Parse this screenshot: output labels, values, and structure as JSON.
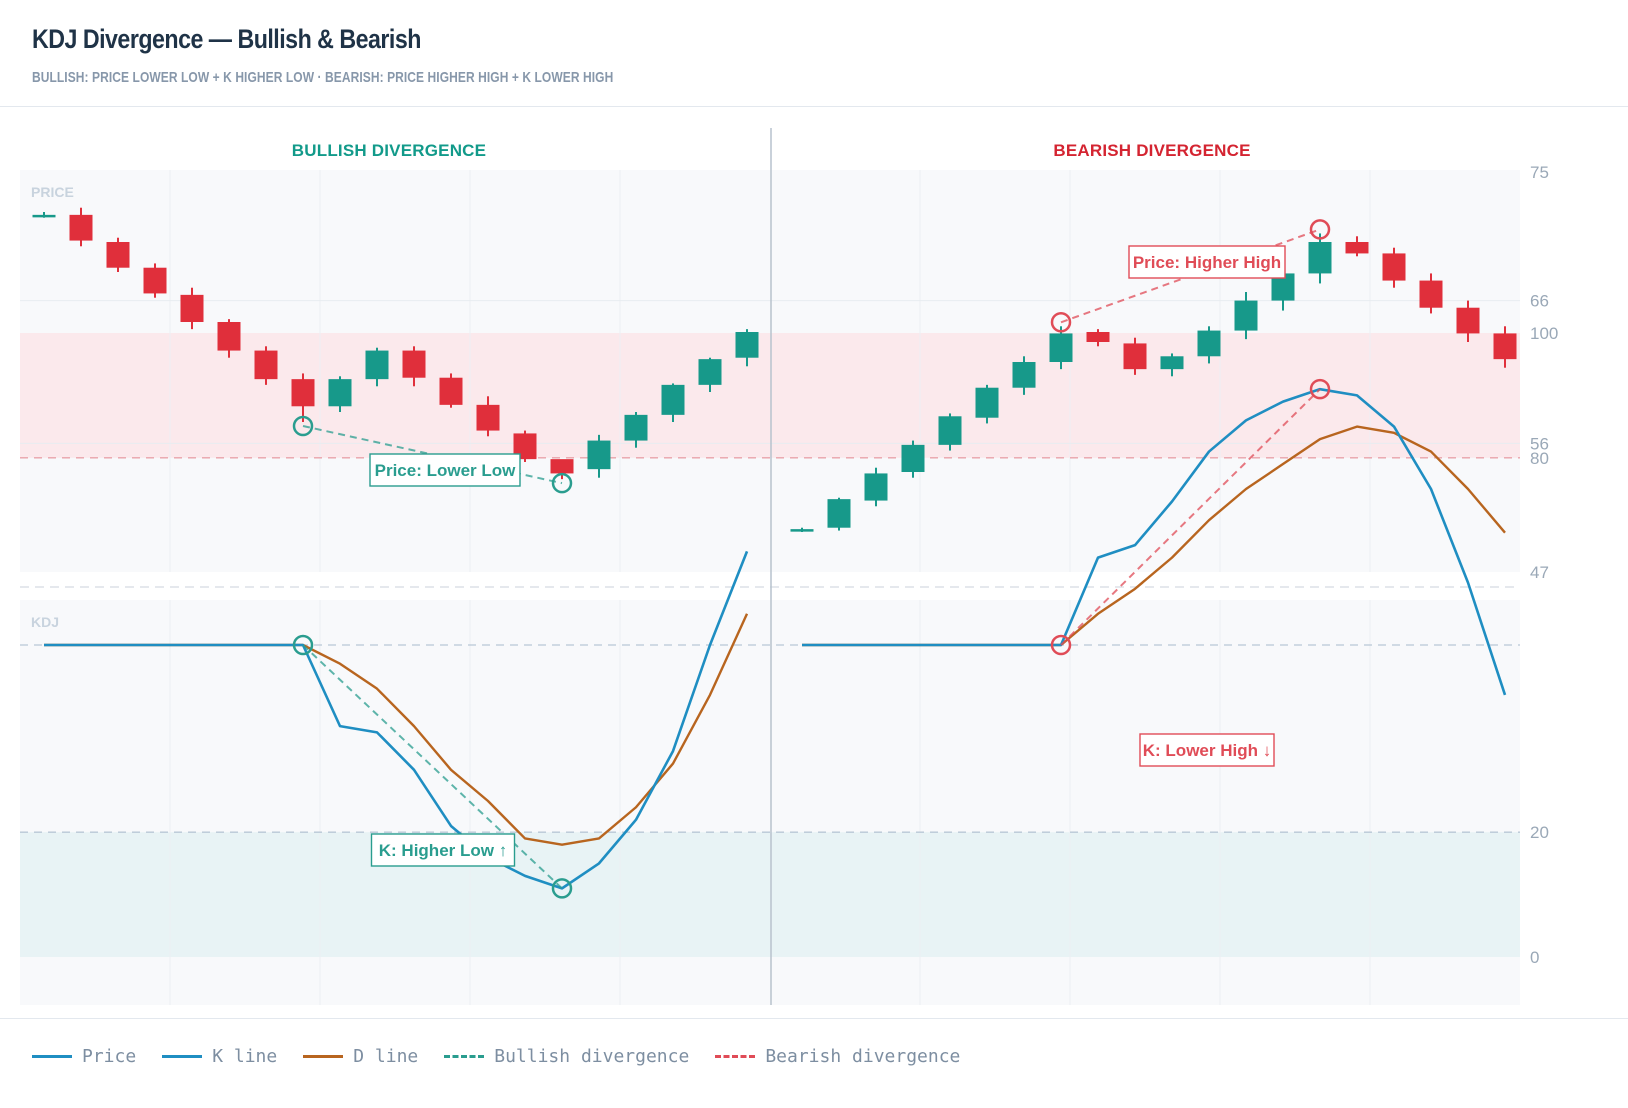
{
  "header": {
    "title": "KDJ Divergence — Bullish & Bearish",
    "subtitle": "BULLISH: PRICE LOWER LOW + K HIGHER LOW · BEARISH: PRICE HIGHER HIGH + K LOWER HIGH"
  },
  "legend": [
    {
      "label": "Price",
      "color": "#1f8ec2",
      "style": "solid"
    },
    {
      "label": "K line",
      "color": "#1f8ec2",
      "style": "solid"
    },
    {
      "label": "D line",
      "color": "#b8651f",
      "style": "solid"
    },
    {
      "label": "Bullish divergence",
      "color": "#2a9d8f",
      "style": "dashed"
    },
    {
      "label": "Bearish divergence",
      "color": "#e04c57",
      "style": "dashed"
    }
  ],
  "chart_data": {
    "type": "candlestick",
    "colors": {
      "up": "#17998a",
      "down": "#e02f3b",
      "k_line": "#1f8ec2",
      "d_line": "#b8651f",
      "bullish": "#2a9d8f",
      "bearish": "#e04c57",
      "overbought_zone": "#fbe9ec",
      "oversold_zone": "#e8f3f5"
    },
    "price_panel": {
      "label": "PRICE",
      "ylim": [
        47,
        75
      ],
      "ticks": [
        75,
        66,
        56,
        47
      ]
    },
    "kdj_panel": {
      "label": "KDJ",
      "ylim": [
        -3,
        100
      ],
      "ticks": [
        100,
        80,
        20,
        0
      ],
      "overbought": 80,
      "oversold": 20
    },
    "panels": [
      {
        "title": "BULLISH DIVERGENCE",
        "title_color": "#129a8a",
        "candles": [
          {
            "o": 72.0,
            "h": 72.2,
            "l": 71.8,
            "c": 72.0
          },
          {
            "o": 72.0,
            "h": 72.5,
            "l": 69.8,
            "c": 70.2
          },
          {
            "o": 70.1,
            "h": 70.4,
            "l": 68.0,
            "c": 68.3
          },
          {
            "o": 68.3,
            "h": 68.6,
            "l": 66.2,
            "c": 66.5
          },
          {
            "o": 66.4,
            "h": 66.9,
            "l": 64.0,
            "c": 64.5
          },
          {
            "o": 64.5,
            "h": 64.7,
            "l": 62.0,
            "c": 62.5
          },
          {
            "o": 62.5,
            "h": 62.8,
            "l": 60.1,
            "c": 60.5
          },
          {
            "o": 60.5,
            "h": 60.9,
            "l": 57.5,
            "c": 58.6
          },
          {
            "o": 58.6,
            "h": 60.7,
            "l": 58.2,
            "c": 60.5
          },
          {
            "o": 60.5,
            "h": 62.7,
            "l": 60.0,
            "c": 62.5
          },
          {
            "o": 62.5,
            "h": 62.8,
            "l": 60.0,
            "c": 60.6
          },
          {
            "o": 60.6,
            "h": 60.9,
            "l": 58.5,
            "c": 58.7
          },
          {
            "o": 58.7,
            "h": 59.3,
            "l": 56.5,
            "c": 56.9
          },
          {
            "o": 56.7,
            "h": 56.9,
            "l": 54.7,
            "c": 54.9
          },
          {
            "o": 54.9,
            "h": 54.8,
            "l": 53.5,
            "c": 53.9
          },
          {
            "o": 54.2,
            "h": 56.6,
            "l": 53.6,
            "c": 56.2
          },
          {
            "o": 56.2,
            "h": 58.2,
            "l": 55.7,
            "c": 58.0
          },
          {
            "o": 58.0,
            "h": 60.2,
            "l": 57.5,
            "c": 60.1
          },
          {
            "o": 60.1,
            "h": 62.0,
            "l": 59.6,
            "c": 61.9
          },
          {
            "o": 62.0,
            "h": 64.0,
            "l": 61.4,
            "c": 63.8
          }
        ],
        "k": [
          50,
          50,
          50,
          50,
          50,
          50,
          50,
          50,
          37,
          36,
          30,
          21,
          16,
          13,
          11,
          15,
          22,
          33,
          50,
          65
        ],
        "d": [
          50,
          50,
          50,
          50,
          50,
          50,
          50,
          50,
          47,
          43,
          37,
          30,
          25,
          19,
          18,
          19,
          24,
          31,
          42,
          55
        ],
        "divergence": {
          "kind": "bullish",
          "price_points": [
            {
              "i": 7,
              "value": 57.5
            },
            {
              "i": 14,
              "value": 53.5
            }
          ],
          "k_points": [
            {
              "i": 7,
              "value": 50
            },
            {
              "i": 14,
              "value": 11
            }
          ],
          "price_label": "Price: Lower Low",
          "k_label": "K: Higher Low ↑"
        }
      },
      {
        "title": "BEARISH DIVERGENCE",
        "title_color": "#d42431",
        "candles": [
          {
            "o": 50.0,
            "h": 50.1,
            "l": 49.8,
            "c": 50.0
          },
          {
            "o": 50.1,
            "h": 52.2,
            "l": 49.9,
            "c": 52.1
          },
          {
            "o": 52.0,
            "h": 54.3,
            "l": 51.6,
            "c": 53.9
          },
          {
            "o": 54.0,
            "h": 56.2,
            "l": 53.6,
            "c": 55.9
          },
          {
            "o": 55.9,
            "h": 58.1,
            "l": 55.5,
            "c": 57.9
          },
          {
            "o": 57.8,
            "h": 60.1,
            "l": 57.4,
            "c": 59.9
          },
          {
            "o": 59.9,
            "h": 62.1,
            "l": 59.4,
            "c": 61.7
          },
          {
            "o": 61.7,
            "h": 64.2,
            "l": 61.2,
            "c": 63.7
          },
          {
            "o": 63.8,
            "h": 64.0,
            "l": 62.8,
            "c": 63.1
          },
          {
            "o": 63.0,
            "h": 63.4,
            "l": 60.8,
            "c": 61.2
          },
          {
            "o": 61.2,
            "h": 62.3,
            "l": 60.7,
            "c": 62.1
          },
          {
            "o": 62.1,
            "h": 64.2,
            "l": 61.6,
            "c": 63.9
          },
          {
            "o": 63.9,
            "h": 66.6,
            "l": 63.3,
            "c": 66.0
          },
          {
            "o": 66.0,
            "h": 68.3,
            "l": 65.3,
            "c": 67.9
          },
          {
            "o": 67.9,
            "h": 70.7,
            "l": 67.2,
            "c": 70.1
          },
          {
            "o": 70.1,
            "h": 70.5,
            "l": 69.1,
            "c": 69.3
          },
          {
            "o": 69.3,
            "h": 69.7,
            "l": 66.9,
            "c": 67.4
          },
          {
            "o": 67.4,
            "h": 67.9,
            "l": 65.1,
            "c": 65.5
          },
          {
            "o": 65.5,
            "h": 66.0,
            "l": 63.1,
            "c": 63.7
          },
          {
            "o": 63.7,
            "h": 64.2,
            "l": 61.3,
            "c": 61.9
          }
        ],
        "k": [
          50,
          50,
          50,
          50,
          50,
          50,
          50,
          50,
          64,
          66,
          73,
          81,
          86,
          89,
          91,
          90,
          85,
          75,
          60,
          42
        ],
        "d": [
          50,
          50,
          50,
          50,
          50,
          50,
          50,
          50,
          55,
          59,
          64,
          70,
          75,
          79,
          83,
          85,
          84,
          81,
          75,
          68
        ],
        "divergence": {
          "kind": "bearish",
          "price_points": [
            {
              "i": 7,
              "value": 64.2
            },
            {
              "i": 14,
              "value": 70.7
            }
          ],
          "k_points": [
            {
              "i": 7,
              "value": 50
            },
            {
              "i": 14,
              "value": 91
            }
          ],
          "price_label": "Price: Higher High",
          "k_label": "K: Lower High ↓"
        }
      }
    ]
  }
}
